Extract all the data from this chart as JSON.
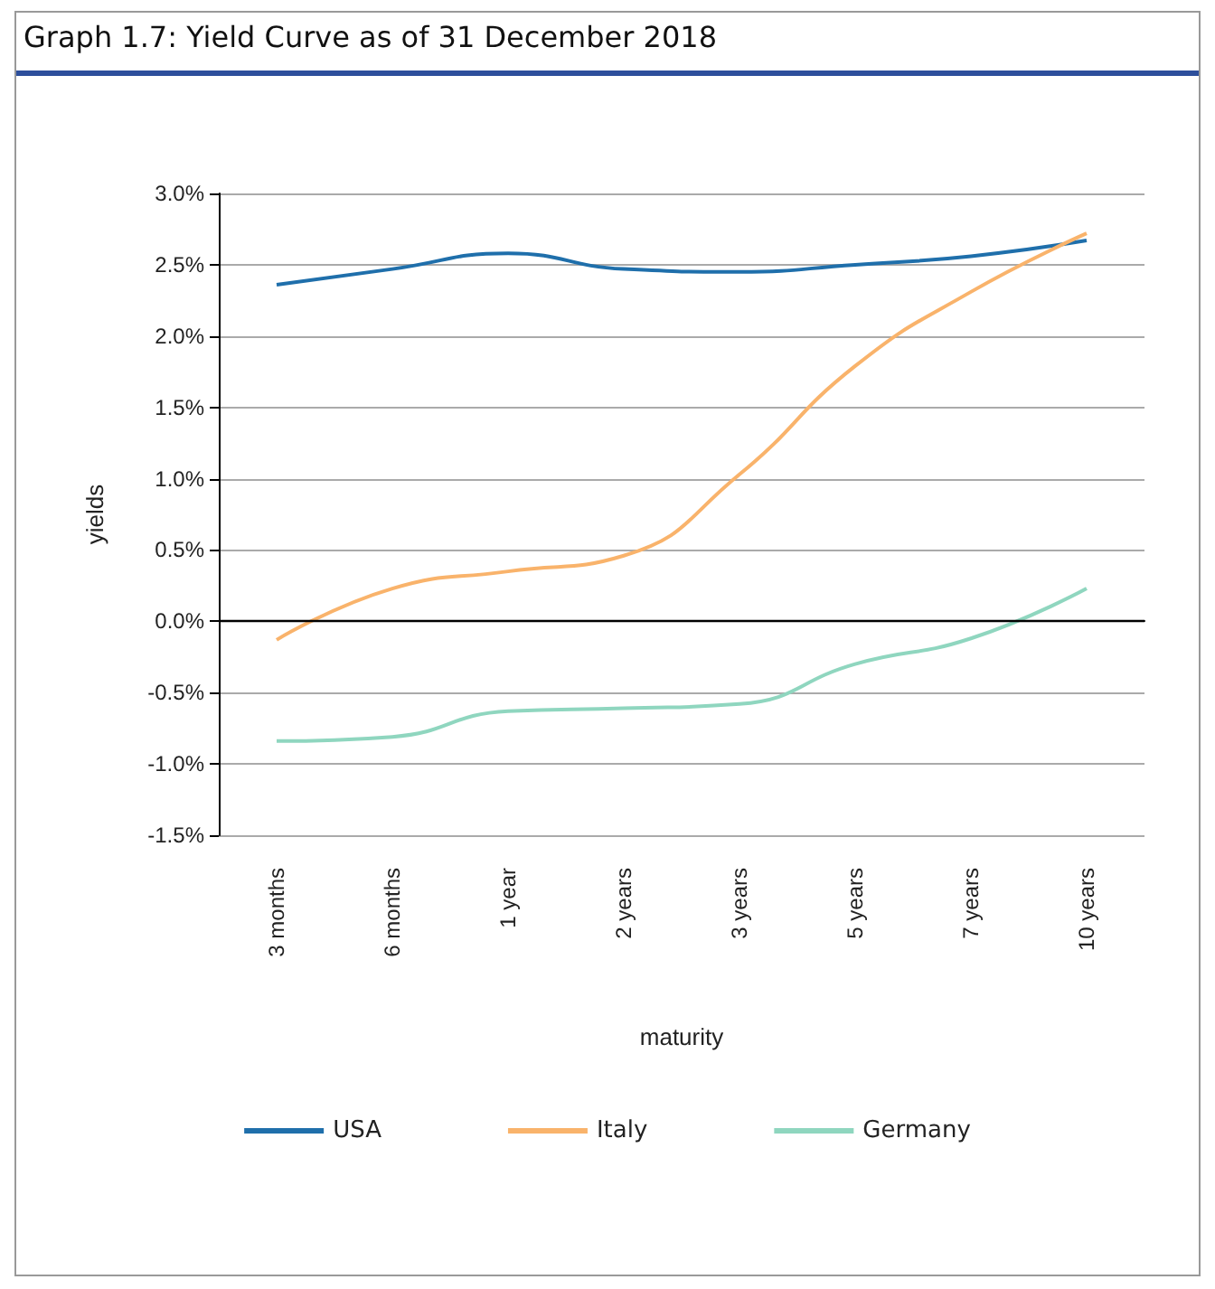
{
  "chart_data": {
    "type": "line",
    "title": "Graph 1.7: Yield Curve as of 31 December 2018",
    "xlabel": "maturity",
    "ylabel": "yields",
    "categories": [
      "3 months",
      "6 months",
      "1 year",
      "2 years",
      "3 years",
      "5 years",
      "7 years",
      "10 years"
    ],
    "series": [
      {
        "name": "USA",
        "color": "#1f6fab",
        "values": [
          2.36,
          2.47,
          2.58,
          2.47,
          2.45,
          2.5,
          2.56,
          2.67
        ]
      },
      {
        "name": "Italy",
        "color": "#f9b36b",
        "values": [
          -0.13,
          0.23,
          0.35,
          0.46,
          1.03,
          1.79,
          2.31,
          2.72
        ]
      },
      {
        "name": "Germany",
        "color": "#8fd6bf",
        "values": [
          -0.84,
          -0.81,
          -0.63,
          -0.61,
          -0.58,
          -0.3,
          -0.12,
          0.23
        ]
      }
    ],
    "ylim": [
      -1.5,
      3
    ],
    "yticks": [
      {
        "value": -1.5,
        "label": "-1.5%"
      },
      {
        "value": -1,
        "label": "-1.0%"
      },
      {
        "value": -0.5,
        "label": "-0.5%"
      },
      {
        "value": 0,
        "label": "0.0%"
      },
      {
        "value": 0.5,
        "label": "0.5%"
      },
      {
        "value": 1,
        "label": "1.0%"
      },
      {
        "value": 1.5,
        "label": "1.5%"
      },
      {
        "value": 2,
        "label": "2.0%"
      },
      {
        "value": 2.5,
        "label": "2.5%"
      },
      {
        "value": 3,
        "label": "3.0%"
      }
    ],
    "ref_lines": [
      {
        "axis": "y",
        "value": 0,
        "color": "#000000"
      }
    ],
    "grid": "y",
    "legend": "bottom",
    "marker": "none",
    "line_style": "solid"
  }
}
